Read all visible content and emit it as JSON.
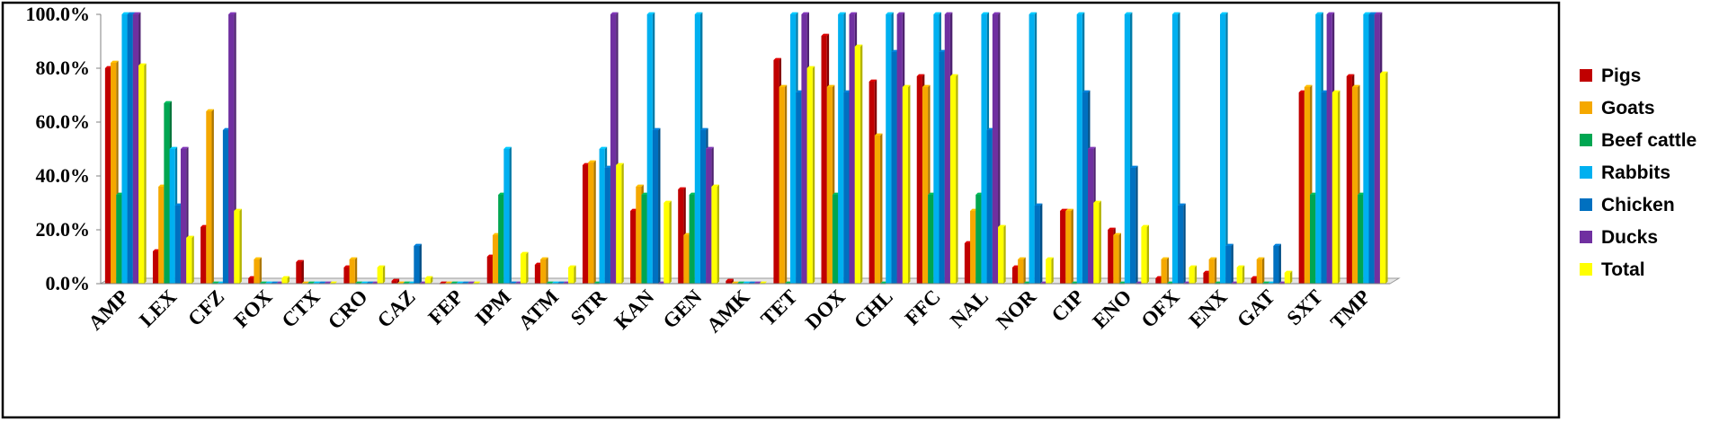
{
  "chart_data": {
    "type": "bar",
    "categories": [
      "AMP",
      "LEX",
      "CFZ",
      "FOX",
      "CTX",
      "CRO",
      "CAZ",
      "FEP",
      "IPM",
      "ATM",
      "STR",
      "KAN",
      "GEN",
      "AMK",
      "TET",
      "DOX",
      "CHL",
      "FFC",
      "NAL",
      "NOR",
      "CIP",
      "ENO",
      "OFX",
      "ENX",
      "GAT",
      "SXT",
      "TMP"
    ],
    "y_tick_labels": [
      "0.0%",
      "20.0%",
      "40.0%",
      "60.0%",
      "80.0%",
      "100.0%"
    ],
    "ylim": [
      0,
      100
    ],
    "grid": false,
    "legend_position": "right",
    "series": [
      {
        "name": "Pigs",
        "color": "#c00000",
        "values": [
          80,
          12,
          21,
          2,
          8,
          6,
          1,
          0,
          10,
          7,
          44,
          27,
          35,
          1,
          83,
          92,
          75,
          77,
          15,
          6,
          27,
          20,
          2,
          4,
          2,
          71,
          77
        ]
      },
      {
        "name": "Goats",
        "color": "#f5a800",
        "values": [
          82,
          36,
          64,
          9,
          0,
          9,
          0,
          0,
          18,
          9,
          45,
          36,
          18,
          0,
          73,
          73,
          55,
          73,
          27,
          9,
          27,
          18,
          9,
          9,
          9,
          73,
          73
        ]
      },
      {
        "name": "Beef cattle",
        "color": "#00a651",
        "values": [
          33,
          67,
          0,
          0,
          0,
          0,
          0,
          0,
          33,
          0,
          0,
          33,
          33,
          0,
          0,
          33,
          0,
          33,
          33,
          0,
          0,
          0,
          0,
          0,
          0,
          33,
          33
        ]
      },
      {
        "name": "Rabbits",
        "color": "#00b0f0",
        "values": [
          100,
          50,
          0,
          0,
          0,
          0,
          0,
          0,
          50,
          0,
          50,
          100,
          100,
          0,
          100,
          100,
          100,
          100,
          100,
          100,
          100,
          100,
          100,
          100,
          0,
          100,
          100
        ]
      },
      {
        "name": "Chicken",
        "color": "#0070c0",
        "values": [
          100,
          29,
          57,
          0,
          0,
          0,
          14,
          0,
          0,
          0,
          43,
          57,
          57,
          0,
          71,
          71,
          86,
          86,
          57,
          29,
          71,
          43,
          29,
          14,
          14,
          71,
          100
        ]
      },
      {
        "name": "Ducks",
        "color": "#7030a0",
        "values": [
          100,
          50,
          100,
          0,
          0,
          0,
          0,
          0,
          0,
          0,
          100,
          0,
          50,
          0,
          100,
          100,
          100,
          100,
          100,
          0,
          50,
          0,
          0,
          0,
          0,
          100,
          100
        ]
      },
      {
        "name": "Total",
        "color": "#ffff00",
        "values": [
          81,
          17,
          27,
          2,
          0,
          6,
          2,
          0,
          11,
          6,
          44,
          30,
          36,
          0,
          80,
          88,
          73,
          77,
          21,
          9,
          30,
          21,
          6,
          6,
          4,
          71,
          78
        ]
      }
    ]
  }
}
